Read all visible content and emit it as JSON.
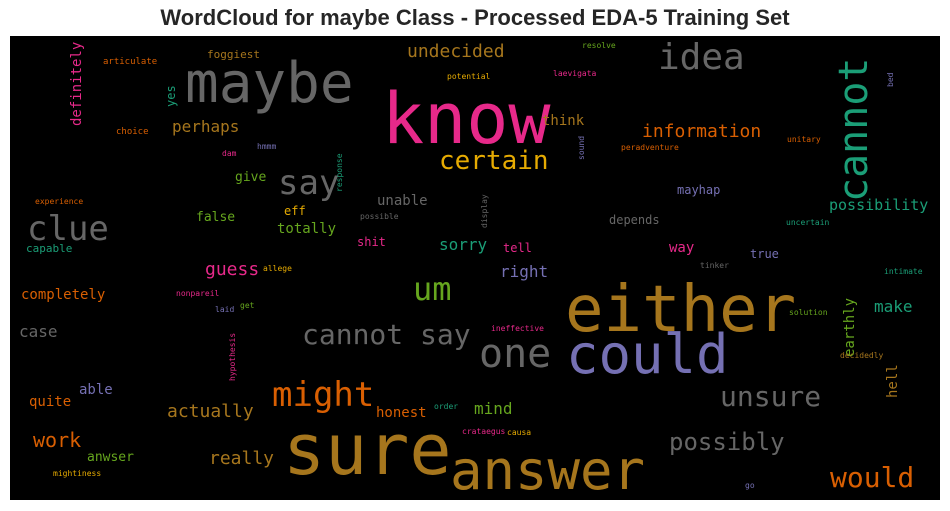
{
  "title": "WordCloud for maybe Class - Processed EDA-5 Training Set",
  "palette": {
    "pink": "#e7298a",
    "orange": "#d95f02",
    "gold": "#a6761d",
    "yellow": "#e6ab02",
    "gray": "#666666",
    "green": "#66a61e",
    "teal": "#1b9e77",
    "purple": "#7570b3"
  },
  "words": {
    "know": "know",
    "sure": "sure",
    "either": "either",
    "maybe": "maybe",
    "could": "could",
    "answer": "answer",
    "cannot": "cannot",
    "one": "one",
    "cannot_say": "cannot say",
    "idea": "idea",
    "might": "might",
    "clue": "clue",
    "unsure": "unsure",
    "say": "say",
    "certain": "certain",
    "um": "um",
    "would": "would",
    "possibly": "possibly",
    "guess": "guess",
    "work": "work",
    "information": "information",
    "undecided": "undecided",
    "perhaps": "perhaps",
    "actually": "actually",
    "really": "really",
    "possibility": "possibility",
    "sorry": "sorry",
    "right": "right",
    "mind": "mind",
    "make": "make",
    "completely": "completely",
    "case": "case",
    "honest": "honest",
    "totally": "totally",
    "unable": "unable",
    "think": "think",
    "definitely": "definitely",
    "earthly": "earthly",
    "hell": "hell",
    "quite": "quite",
    "able": "able",
    "anwser": "anwser",
    "way": "way",
    "give": "give",
    "false": "false",
    "true": "true",
    "mayhap": "mayhap",
    "depends": "depends",
    "tell": "tell",
    "shit": "shit",
    "yes": "yes",
    "eff": "eff",
    "foggiest": "foggiest",
    "articulate": "articulate",
    "choice": "choice",
    "dam": "dam",
    "hmmm": "hmmm",
    "experience": "experience",
    "capable": "capable",
    "resolve": "resolve",
    "potential": "potential",
    "laevigata": "laevigata",
    "bed": "bed",
    "sound": "sound",
    "peradventure": "peradventure",
    "unitary": "unitary",
    "response": "response",
    "possible": "possible",
    "display": "display",
    "uncertain": "uncertain",
    "allege": "allege",
    "nonpareil": "nonpareil",
    "laid": "laid",
    "get": "get",
    "hypothesis": "hypothesis",
    "ineffective": "ineffective",
    "tinker": "tinker",
    "intimate": "intimate",
    "solution": "solution",
    "decidedly": "decidedly",
    "order": "order",
    "crataegus": "crataegus",
    "causa": "causa",
    "mightiness": "mightiness",
    "go": "go"
  }
}
